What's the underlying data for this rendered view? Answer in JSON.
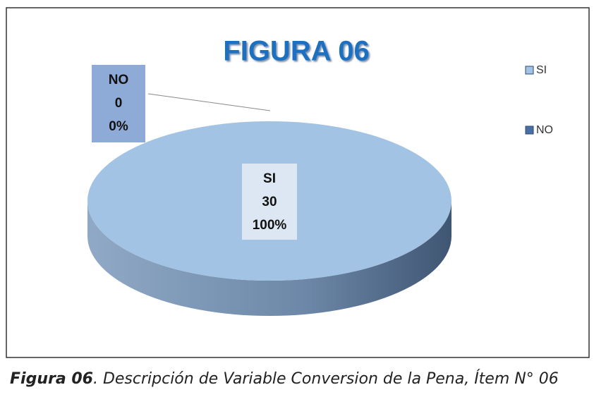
{
  "chart_data": {
    "type": "pie",
    "title": "FIGURA 06",
    "categories": [
      "SI",
      "NO"
    ],
    "values": [
      30,
      0
    ],
    "percentages": [
      100,
      0
    ],
    "percentage_labels": [
      "100%",
      "0%"
    ],
    "colors": [
      "#a2c3e3",
      "#4a6fa5"
    ],
    "legend": "right"
  },
  "caption": {
    "label": "Figura 06",
    "text": ". Descripción de Variable Conversion de la Pena, Ítem N° 06"
  }
}
